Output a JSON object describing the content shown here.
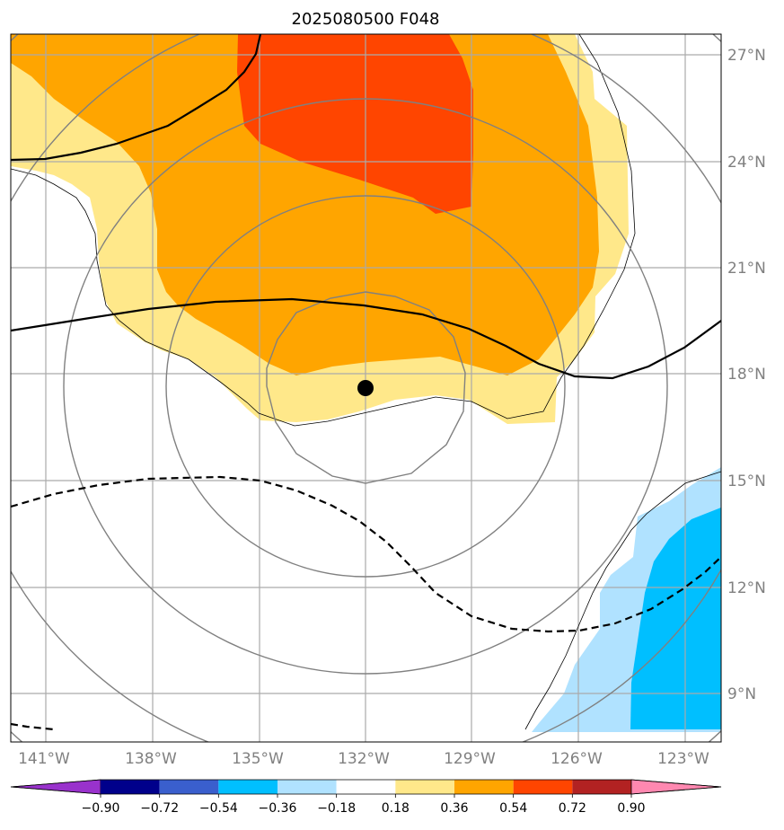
{
  "title": "2025080500 F048",
  "map": {
    "lon_labels": [
      "141°W",
      "138°W",
      "135°W",
      "132°W",
      "129°W",
      "126°W",
      "123°W"
    ],
    "lon_values": [
      -141,
      -138,
      -135,
      -132,
      -129,
      -126,
      -123
    ],
    "lat_labels": [
      "27°N",
      "24°N",
      "21°N",
      "18°N",
      "15°N",
      "12°N",
      "9°N"
    ],
    "lat_values": [
      27,
      24,
      21,
      18,
      15,
      12,
      9
    ],
    "lon_range": [
      -142,
      -122
    ],
    "lat_range": [
      7.9,
      27.6
    ],
    "center_marker": {
      "lon": -132.0,
      "lat": 17.6
    },
    "range_rings": "concentric circles centered on storm",
    "gridlines": true
  },
  "colorbar": {
    "levels": [
      -0.9,
      -0.72,
      -0.54,
      -0.36,
      -0.18,
      0.18,
      0.36,
      0.54,
      0.72,
      0.9
    ],
    "tick_labels": [
      "−0.90",
      "−0.72",
      "−0.54",
      "−0.36",
      "−0.18",
      "0.18",
      "0.36",
      "0.54",
      "0.72",
      "0.90"
    ],
    "colors": [
      "#9932cc",
      "#00008b",
      "#3a5fcd",
      "#00bfff",
      "#b0e2ff",
      "#ffffff",
      "#ffe88a",
      "#ffa500",
      "#ff4500",
      "#b22222",
      "#ff88b0"
    ],
    "extend": "both"
  }
}
